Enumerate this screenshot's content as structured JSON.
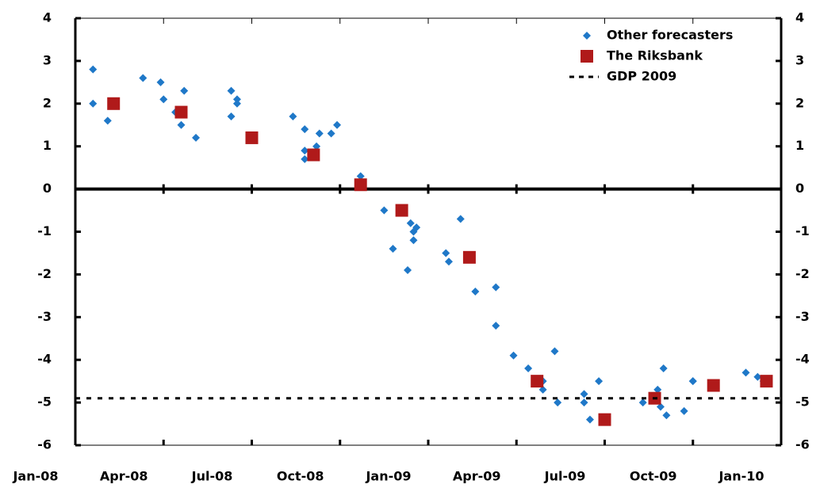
{
  "chart_data": {
    "type": "scatter",
    "xlim": [
      0,
      24
    ],
    "xticks": [
      {
        "value": 0,
        "label": "Jan-08"
      },
      {
        "value": 3,
        "label": "Apr-08"
      },
      {
        "value": 6,
        "label": "Jul-08"
      },
      {
        "value": 9,
        "label": "Oct-08"
      },
      {
        "value": 12,
        "label": "Jan-09"
      },
      {
        "value": 15,
        "label": "Apr-09"
      },
      {
        "value": 18,
        "label": "Jul-09"
      },
      {
        "value": 21,
        "label": "Oct-09"
      },
      {
        "value": 24,
        "label": "Jan-10"
      }
    ],
    "ylim": [
      -6,
      4
    ],
    "yticks": [
      -6,
      -5,
      -4,
      -3,
      -2,
      -1,
      0,
      1,
      2,
      3,
      4
    ],
    "y2lim": [
      -6,
      4
    ],
    "y2ticks": [
      -6,
      -5,
      -4,
      -3,
      -2,
      -1,
      0,
      1,
      2,
      3,
      4
    ],
    "legend": "top-right",
    "series": [
      {
        "name": "Other forecasters",
        "color": "#1f78c8",
        "marker": "diamond",
        "x": [
          0.6,
          0.6,
          1.1,
          2.3,
          2.9,
          3.0,
          3.4,
          3.6,
          3.7,
          4.1,
          5.3,
          5.3,
          5.5,
          5.5,
          7.4,
          7.8,
          7.8,
          7.8,
          8.2,
          8.3,
          8.7,
          8.9,
          9.7,
          10.5,
          10.8,
          11.3,
          11.4,
          11.5,
          11.5,
          11.6,
          12.6,
          12.7,
          13.1,
          13.6,
          14.3,
          14.3,
          14.9,
          15.4,
          15.9,
          15.9,
          16.3,
          16.4,
          17.3,
          17.3,
          17.5,
          17.8,
          19.3,
          19.8,
          19.9,
          20.0,
          20.1,
          20.7,
          21.0,
          21.0,
          22.8,
          23.2,
          23.4
        ],
        "values": [
          2.8,
          2.0,
          1.6,
          2.6,
          2.5,
          2.1,
          1.8,
          1.5,
          2.3,
          1.2,
          2.3,
          1.7,
          2.1,
          2.0,
          1.7,
          1.4,
          0.9,
          0.7,
          1.0,
          1.3,
          1.3,
          1.5,
          0.3,
          -0.5,
          -1.4,
          -1.9,
          -0.8,
          -1.0,
          -1.2,
          -0.9,
          -1.5,
          -1.7,
          -0.7,
          -2.4,
          -2.3,
          -3.2,
          -3.9,
          -4.2,
          -4.5,
          -4.7,
          -3.8,
          -5.0,
          -4.8,
          -5.0,
          -5.4,
          -4.5,
          -5.0,
          -4.7,
          -5.1,
          -4.2,
          -5.3,
          -5.2,
          -4.5,
          -4.5,
          -4.3,
          -4.4,
          -4.5
        ]
      },
      {
        "name": "The Riksbank",
        "color": "#b01a1a",
        "marker": "square",
        "x": [
          1.3,
          3.6,
          6.0,
          8.1,
          9.7,
          11.1,
          13.4,
          15.7,
          18.0,
          19.7,
          21.7,
          23.5
        ],
        "values": [
          2.0,
          1.8,
          1.2,
          0.8,
          0.1,
          -0.5,
          -1.6,
          -4.5,
          -5.4,
          -4.9,
          -4.6,
          -4.5
        ]
      },
      {
        "name": "GDP 2009",
        "color": "#000000",
        "marker": "dashed-line",
        "x": [
          0,
          24
        ],
        "values": [
          -4.9,
          -4.9
        ]
      }
    ]
  }
}
